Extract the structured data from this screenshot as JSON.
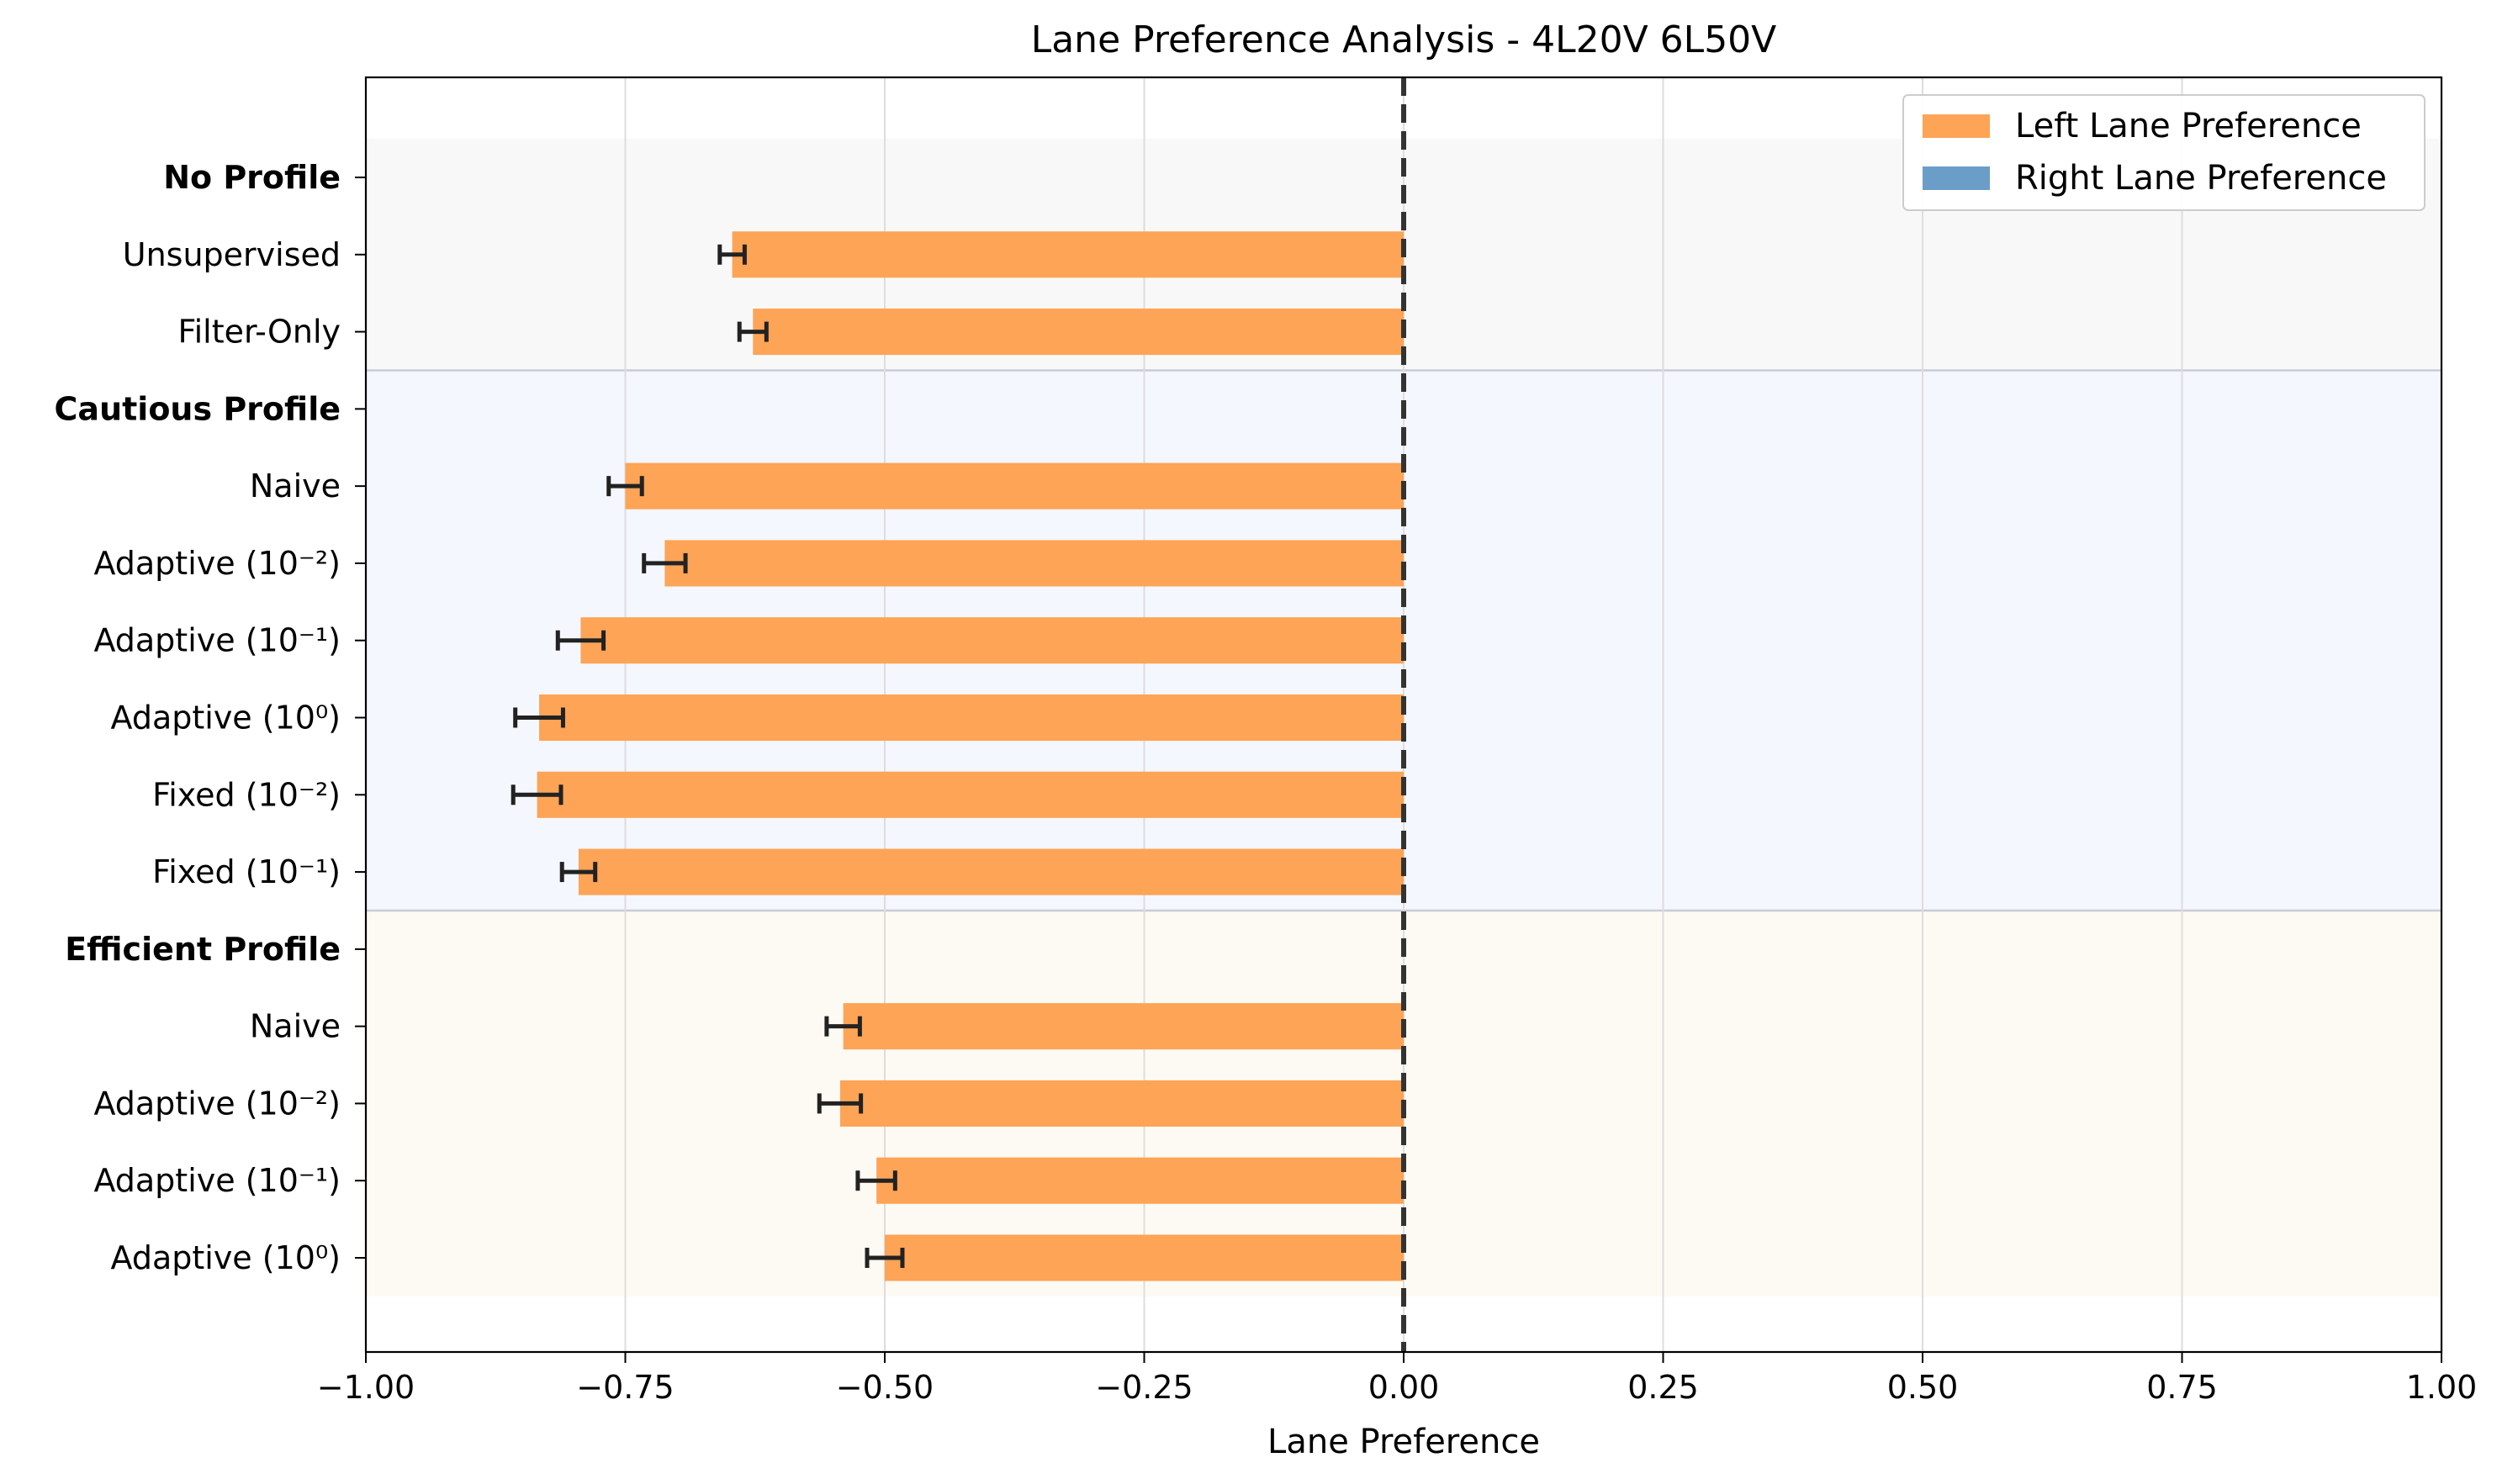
{
  "chart_data": {
    "type": "bar",
    "orientation": "horizontal",
    "title": "Lane Preference Analysis - 4L20V 6L50V",
    "xlabel": "Lane Preference",
    "ylabel": "",
    "xlim": [
      -1.0,
      1.0
    ],
    "xticks": [
      -1.0,
      -0.75,
      -0.5,
      -0.25,
      0.0,
      0.25,
      0.5,
      0.75,
      1.0
    ],
    "xtick_labels": [
      "−1.00",
      "−0.75",
      "−0.50",
      "−0.25",
      "0.00",
      "0.25",
      "0.50",
      "0.75",
      "1.00"
    ],
    "grid": true,
    "reference_line": {
      "x": 0.0,
      "style": "dashed",
      "color": "#333333"
    },
    "legend": {
      "placement": "top-right",
      "entries": [
        {
          "label": "Left Lane Preference",
          "color": "#fda456"
        },
        {
          "label": "Right Lane Preference",
          "color": "#6a9ec9"
        }
      ]
    },
    "groups": [
      {
        "header": "No Profile",
        "background": "#f8f8f8",
        "items": [
          {
            "label": "Unsupervised",
            "value": -0.647,
            "error": 0.012
          },
          {
            "label": "Filter-Only",
            "value": -0.627,
            "error": 0.013
          }
        ]
      },
      {
        "header": "Cautious Profile",
        "background": "#f4f7fd",
        "items": [
          {
            "label": "Naive",
            "value": -0.75,
            "error": 0.016
          },
          {
            "label": "Adaptive (10⁻²)",
            "value": -0.712,
            "error": 0.02
          },
          {
            "label": "Adaptive (10⁻¹)",
            "value": -0.793,
            "error": 0.022
          },
          {
            "label": "Adaptive (10⁰)",
            "value": -0.833,
            "error": 0.023
          },
          {
            "label": "Fixed (10⁻²)",
            "value": -0.835,
            "error": 0.023
          },
          {
            "label": "Fixed (10⁻¹)",
            "value": -0.795,
            "error": 0.016
          }
        ]
      },
      {
        "header": "Efficient Profile",
        "background": "#fdfaf3",
        "items": [
          {
            "label": "Naive",
            "value": -0.54,
            "error": 0.016
          },
          {
            "label": "Adaptive (10⁻²)",
            "value": -0.543,
            "error": 0.02
          },
          {
            "label": "Adaptive (10⁻¹)",
            "value": -0.508,
            "error": 0.018
          },
          {
            "label": "Adaptive (10⁰)",
            "value": -0.5,
            "error": 0.017
          }
        ]
      }
    ]
  }
}
